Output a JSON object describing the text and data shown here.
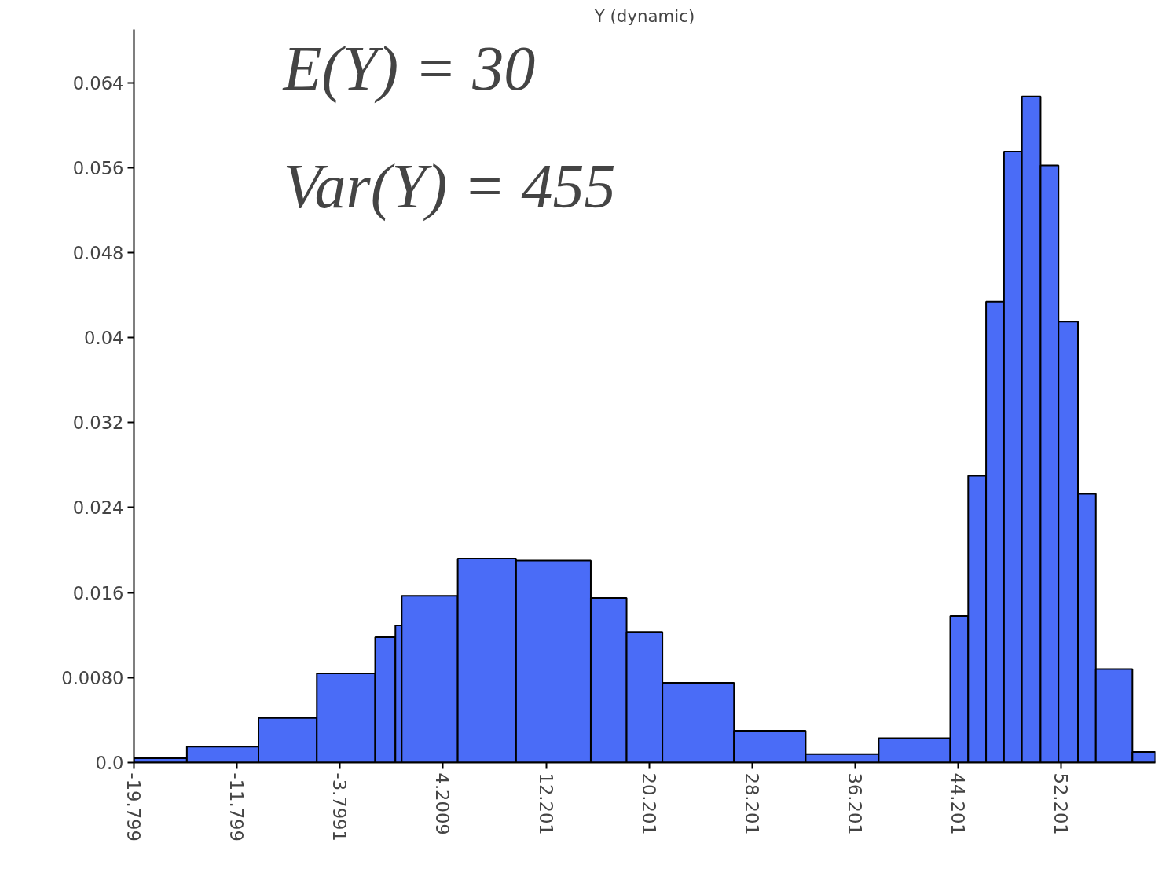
{
  "chart_data": {
    "type": "histogram",
    "title": "Y (dynamic)",
    "annotations": [
      "E(Y) = 30",
      "Var(Y) = 455"
    ],
    "bins": [
      -19.799,
      -15.69,
      -10.13,
      -5.6,
      -1.07,
      0.5,
      0.99,
      5.34,
      9.87,
      15.67,
      18.45,
      21.23,
      26.79,
      32.35,
      38.02,
      43.58,
      44.97,
      46.36,
      47.75,
      49.14,
      50.59,
      51.98,
      53.49,
      54.88,
      57.72,
      59.5
    ],
    "values": [
      0.0004,
      0.0015,
      0.0042,
      0.0084,
      0.0118,
      0.0129,
      0.0157,
      0.0192,
      0.019,
      0.0155,
      0.0123,
      0.0075,
      0.003,
      0.0008,
      0.0023,
      0.0138,
      0.027,
      0.0434,
      0.0575,
      0.0627,
      0.0562,
      0.0415,
      0.0253,
      0.0088,
      0.001
    ],
    "color": "#4a6cf7",
    "xlim": [
      -19.799,
      59.5
    ],
    "xticks": [
      -19.799,
      -11.799,
      -3.7991,
      4.2009,
      12.201,
      20.201,
      28.201,
      36.201,
      44.201,
      52.201
    ],
    "ylim": [
      0,
      0.069
    ],
    "yticks": [
      {
        "value": 0,
        "label": "0.0"
      },
      {
        "value": 0.008,
        "label": "0.0080"
      },
      0.016,
      0.024,
      0.032,
      0.04,
      0.048,
      0.056,
      0.064
    ],
    "grid": false
  }
}
